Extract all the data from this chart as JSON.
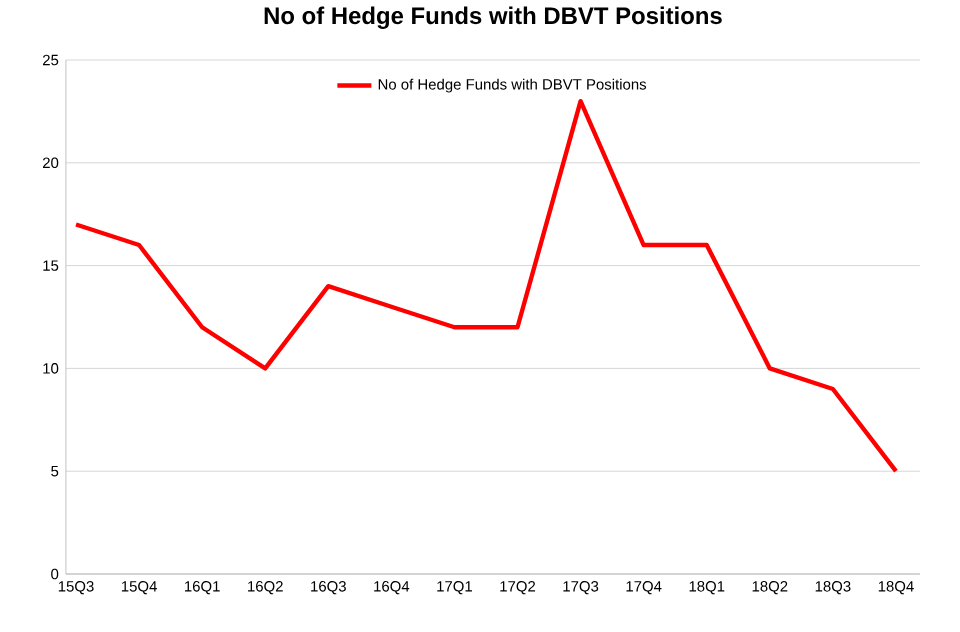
{
  "chart_data": {
    "type": "line",
    "title": "No of Hedge Funds with DBVT Positions",
    "categories": [
      "15Q3",
      "15Q4",
      "16Q1",
      "16Q2",
      "16Q3",
      "16Q4",
      "17Q1",
      "17Q2",
      "17Q3",
      "17Q4",
      "18Q1",
      "18Q2",
      "18Q3",
      "18Q4"
    ],
    "series": [
      {
        "name": "No of Hedge Funds with DBVT Positions",
        "color": "#ff0000",
        "values": [
          17,
          16,
          12,
          10,
          14,
          13,
          12,
          12,
          23,
          16,
          16,
          10,
          9,
          5
        ]
      }
    ],
    "ylim": [
      0,
      25
    ],
    "yticks": [
      0,
      5,
      10,
      15,
      20,
      25
    ],
    "grid": "y",
    "legend": "top",
    "marker": "none",
    "line_style": "solid"
  }
}
